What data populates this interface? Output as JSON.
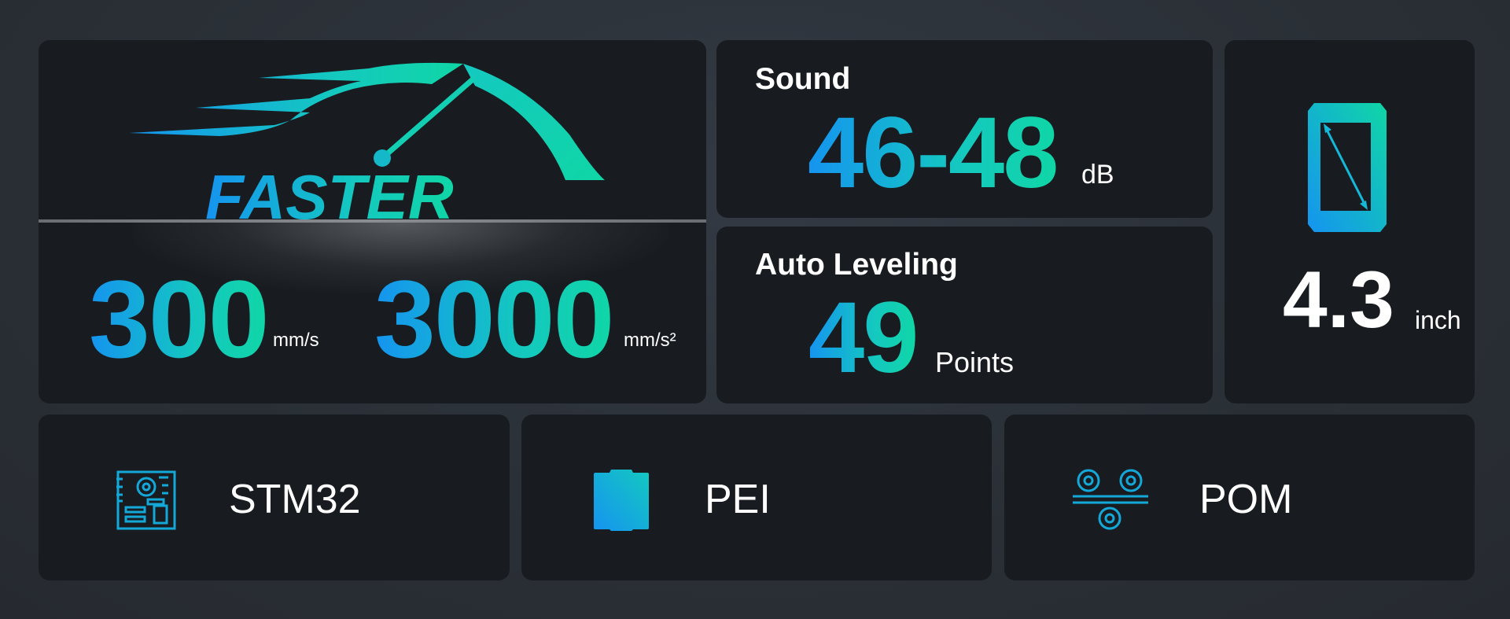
{
  "speed": {
    "logo_text": "FASTER",
    "speed_value": "300",
    "speed_unit": "mm/s",
    "accel_value": "3000",
    "accel_unit": "mm/s²"
  },
  "sound": {
    "title": "Sound",
    "value": "46-48",
    "unit": "dB"
  },
  "leveling": {
    "title": "Auto Leveling",
    "value": "49",
    "unit": "Points"
  },
  "screen": {
    "value": "4.3",
    "unit": "inch",
    "icon": "screen-size-icon"
  },
  "features": [
    {
      "label": "STM32",
      "icon": "motherboard-icon"
    },
    {
      "label": "PEI",
      "icon": "build-plate-icon"
    },
    {
      "label": "POM",
      "icon": "pulley-wheels-icon"
    }
  ],
  "colors": {
    "accent_blue": "#1594f0",
    "accent_green": "#10d6a6",
    "card_bg": "#181c20",
    "page_bg": "#2a2f36"
  }
}
